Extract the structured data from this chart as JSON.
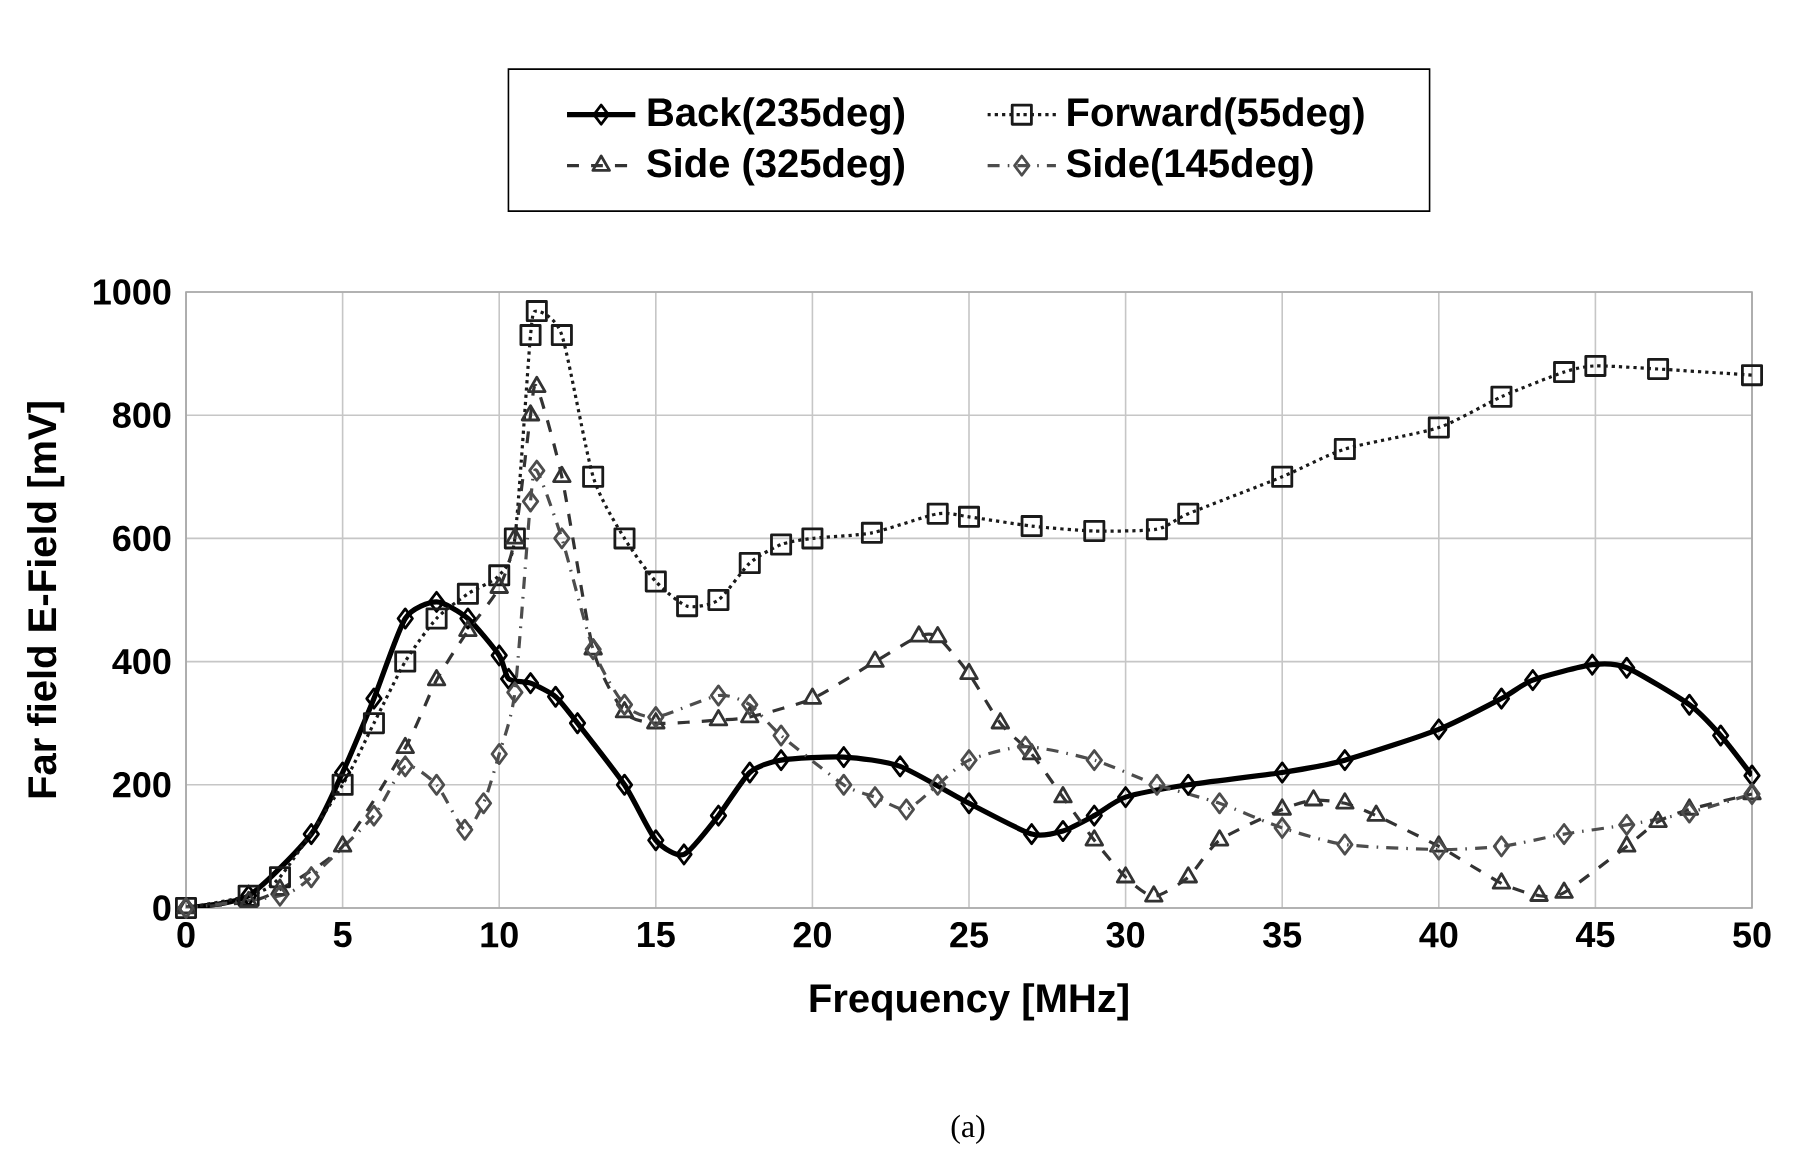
{
  "chart_data": {
    "type": "line",
    "xlabel": "Frequency [MHz]",
    "ylabel": "Far field E-Field [mV]",
    "xlim": [
      0,
      50
    ],
    "xticks": [
      0,
      5,
      10,
      15,
      20,
      25,
      30,
      35,
      40,
      45,
      50
    ],
    "ylim": [
      0,
      1000
    ],
    "yticks": [
      0,
      200,
      400,
      600,
      800,
      1000
    ],
    "grid": true,
    "legend": "top",
    "annotations": [
      "(a)"
    ],
    "series": [
      {
        "name": "Back(235deg)",
        "color": "#000000",
        "line_style": "solid",
        "marker": "diamond",
        "x": [
          0,
          2,
          4,
          5,
          6,
          7,
          8,
          9,
          10,
          10.3,
          11,
          11.8,
          12.5,
          14,
          15,
          15.9,
          17,
          18,
          19,
          21,
          22.8,
          25,
          27,
          28,
          29,
          30,
          32,
          35,
          37,
          40,
          42,
          43,
          44.9,
          46,
          48,
          49,
          50
        ],
        "values": [
          0,
          20,
          120,
          220,
          340,
          470,
          497,
          470,
          410,
          372,
          365,
          343,
          300,
          200,
          110,
          87,
          150,
          220,
          240,
          245,
          230,
          170,
          120,
          125,
          150,
          180,
          200,
          220,
          240,
          290,
          340,
          370,
          395,
          390,
          330,
          280,
          215
        ]
      },
      {
        "name": "Forward(55deg)",
        "color": "#1a1a1a",
        "line_style": "dotted",
        "marker": "square",
        "x": [
          0,
          2,
          3,
          5,
          6,
          7,
          8,
          9,
          10,
          10.5,
          11,
          11.2,
          12,
          13,
          14,
          15,
          16,
          17,
          18,
          19,
          20,
          21.9,
          24,
          25,
          27,
          29,
          31,
          32,
          35,
          37,
          40,
          42,
          44,
          45,
          47,
          50
        ],
        "values": [
          0,
          20,
          50,
          200,
          300,
          400,
          470,
          510,
          540,
          600,
          930,
          969,
          930,
          700,
          600,
          530,
          490,
          500,
          560,
          590,
          600,
          609,
          640,
          635,
          620,
          612,
          615,
          640,
          700,
          745,
          780,
          830,
          870,
          880,
          875,
          865
        ]
      },
      {
        "name": "Side (325deg)",
        "color": "#333333",
        "line_style": "dashed",
        "marker": "triangle",
        "x": [
          0,
          2,
          3,
          5,
          7,
          8,
          9,
          10,
          10.5,
          11,
          11.2,
          12,
          13,
          14,
          15,
          17,
          18,
          20,
          22,
          23.4,
          24,
          25,
          26,
          27,
          28,
          29,
          30,
          30.9,
          32,
          33,
          35,
          36,
          37,
          38,
          40,
          42,
          43.2,
          44,
          46,
          47,
          48,
          50
        ],
        "values": [
          0,
          10,
          30,
          100,
          260,
          370,
          450,
          520,
          600,
          800,
          846,
          700,
          420,
          318,
          300,
          305,
          310,
          340,
          400,
          441,
          440,
          380,
          300,
          250,
          180,
          110,
          50,
          19,
          50,
          110,
          160,
          175,
          170,
          150,
          100,
          40,
          20,
          25,
          100,
          140,
          160,
          185
        ]
      },
      {
        "name": "Side(145deg)",
        "color": "#4d4d4d",
        "line_style": "dashdot",
        "marker": "diamond",
        "x": [
          0,
          3,
          4,
          6,
          7,
          8,
          8.9,
          9.5,
          10,
          10.5,
          11,
          11.2,
          12,
          13,
          14,
          15,
          17,
          18,
          19,
          21,
          22,
          23,
          24,
          25,
          26.8,
          29,
          31,
          33,
          35,
          37,
          40,
          42,
          44,
          46,
          48,
          50
        ],
        "values": [
          0,
          20,
          50,
          150,
          230,
          200,
          127,
          170,
          250,
          350,
          660,
          710,
          600,
          420,
          330,
          310,
          345,
          330,
          280,
          200,
          180,
          160,
          200,
          240,
          262,
          240,
          200,
          170,
          130,
          103,
          95,
          100,
          120,
          135,
          155,
          185
        ]
      }
    ]
  }
}
